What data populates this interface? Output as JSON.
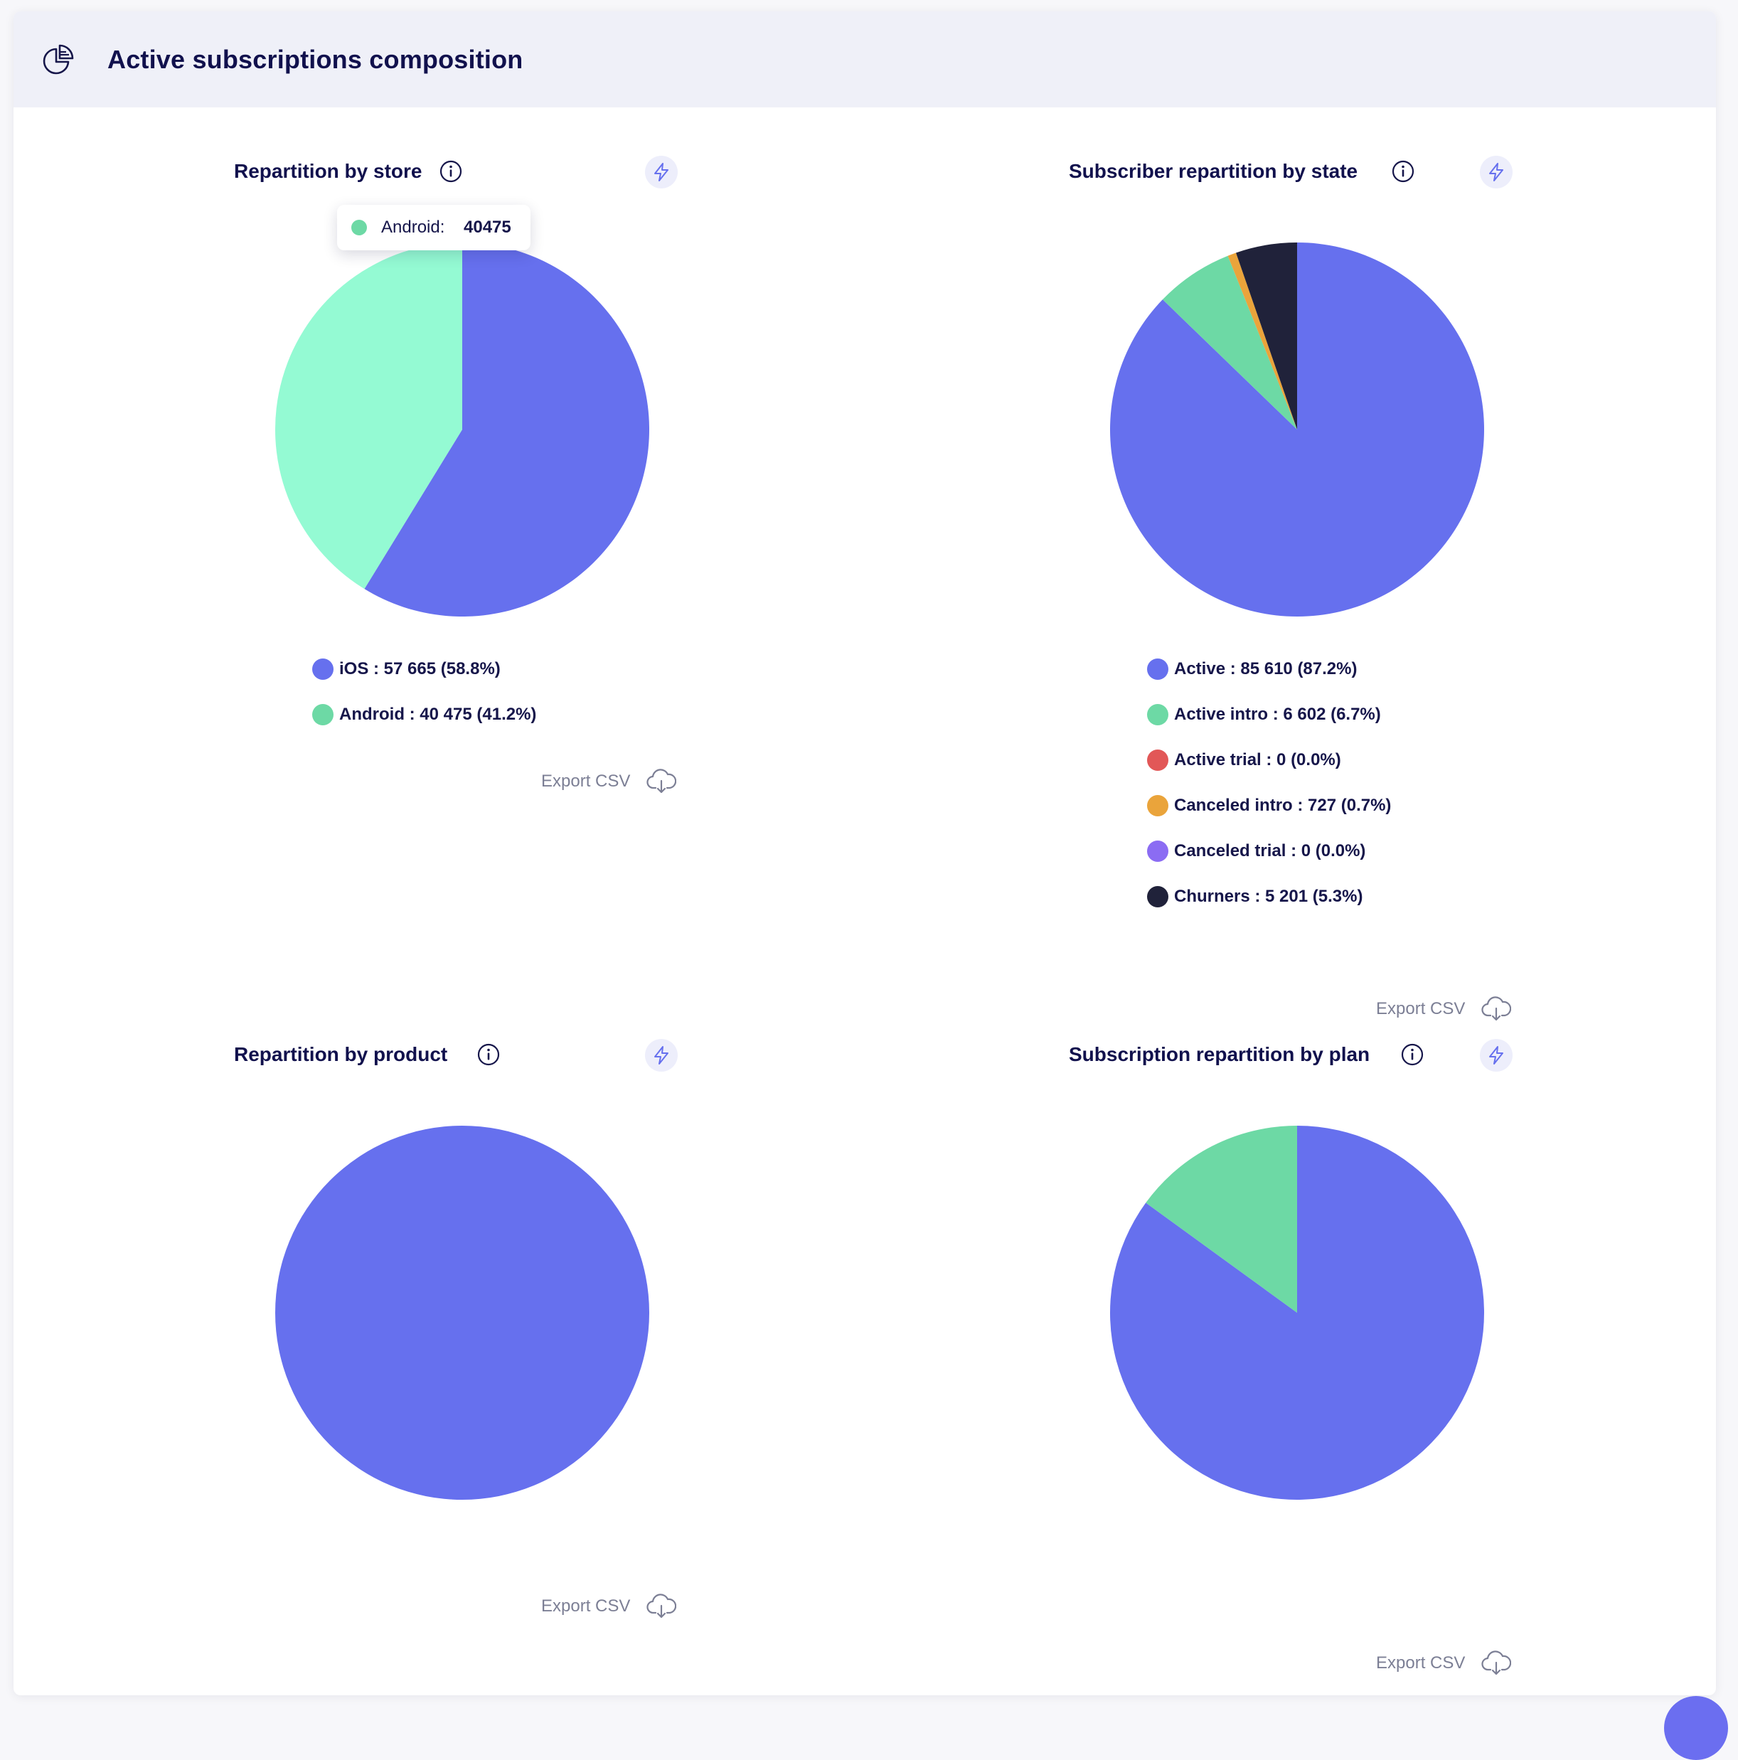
{
  "header": {
    "title": "Active subscriptions composition",
    "icon": "pie-chart-icon"
  },
  "export_label": "Export CSV",
  "colors": {
    "primary": "#6670ee",
    "green": "#6dd9a5",
    "mint": "#94fad3",
    "red": "#e25757",
    "orange": "#eaa43b",
    "purple": "#8b6cf3",
    "navy": "#20223a"
  },
  "panels": {
    "store": {
      "title": "Repartition by store",
      "legend": [
        {
          "label": "iOS : 57 665 (58.8%)",
          "color": "#6670ee"
        },
        {
          "label": "Android : 40 475 (41.2%)",
          "color": "#6dd9a5"
        }
      ],
      "tooltip": {
        "label": "Android:",
        "value": "40475",
        "color": "#6dd9a5"
      }
    },
    "state": {
      "title": "Subscriber repartition by state",
      "legend": [
        {
          "label": "Active : 85 610 (87.2%)",
          "color": "#6670ee"
        },
        {
          "label": "Active intro : 6 602 (6.7%)",
          "color": "#6dd9a5"
        },
        {
          "label": "Active trial : 0 (0.0%)",
          "color": "#e25757"
        },
        {
          "label": "Canceled intro : 727 (0.7%)",
          "color": "#eaa43b"
        },
        {
          "label": "Canceled trial : 0 (0.0%)",
          "color": "#8b6cf3"
        },
        {
          "label": "Churners : 5 201 (5.3%)",
          "color": "#20223a"
        }
      ]
    },
    "product": {
      "title": "Repartition by product"
    },
    "plan": {
      "title": "Subscription repartition by plan"
    }
  },
  "chart_data": [
    {
      "type": "pie",
      "title": "Repartition by store",
      "categories": [
        "iOS",
        "Android"
      ],
      "values": [
        57665,
        40475
      ],
      "colors": [
        "#6670ee",
        "#94fad3"
      ],
      "start": "12 o'clock",
      "direction": "clockwise"
    },
    {
      "type": "pie",
      "title": "Subscriber repartition by state",
      "categories": [
        "Active",
        "Active intro",
        "Active trial",
        "Canceled intro",
        "Canceled trial",
        "Churners"
      ],
      "values": [
        85610,
        6602,
        0,
        727,
        0,
        5201
      ],
      "colors": [
        "#6670ee",
        "#6dd9a5",
        "#e25757",
        "#eaa43b",
        "#8b6cf3",
        "#20223a"
      ],
      "start": "12 o'clock",
      "direction": "clockwise"
    },
    {
      "type": "pie",
      "title": "Repartition by product",
      "values": [
        100
      ],
      "colors": [
        "#6670ee"
      ],
      "start": "12 o'clock",
      "direction": "clockwise"
    },
    {
      "type": "pie",
      "title": "Subscription repartition by plan",
      "values": [
        85,
        15
      ],
      "colors": [
        "#6670ee",
        "#6dd9a5"
      ],
      "start": "12 o'clock",
      "direction": "clockwise"
    }
  ]
}
